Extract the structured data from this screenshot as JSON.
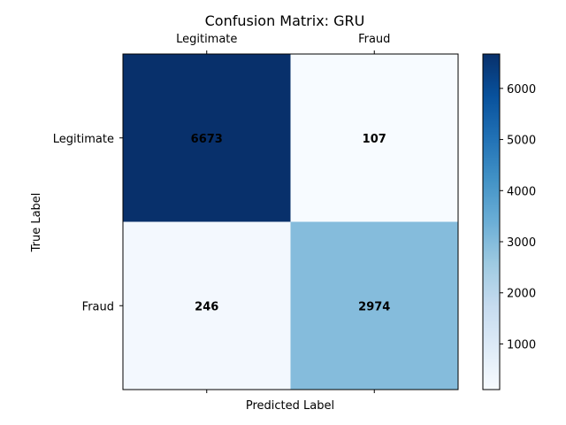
{
  "chart_data": {
    "type": "heatmap",
    "title": "Confusion Matrix: GRU",
    "xlabel": "Predicted Label",
    "ylabel": "True Label",
    "x_categories": [
      "Legitimate",
      "Fraud"
    ],
    "y_categories": [
      "Legitimate",
      "Fraud"
    ],
    "values": [
      [
        6673,
        107
      ],
      [
        246,
        2974
      ]
    ],
    "colormap": "Blues",
    "colorbar": {
      "range": [
        107,
        6673
      ],
      "ticks": [
        1000,
        2000,
        3000,
        4000,
        5000,
        6000
      ]
    },
    "x_tick_position": "top",
    "grid": false,
    "colors": {
      "low": "#f7fbff",
      "high": "#08306b"
    }
  }
}
